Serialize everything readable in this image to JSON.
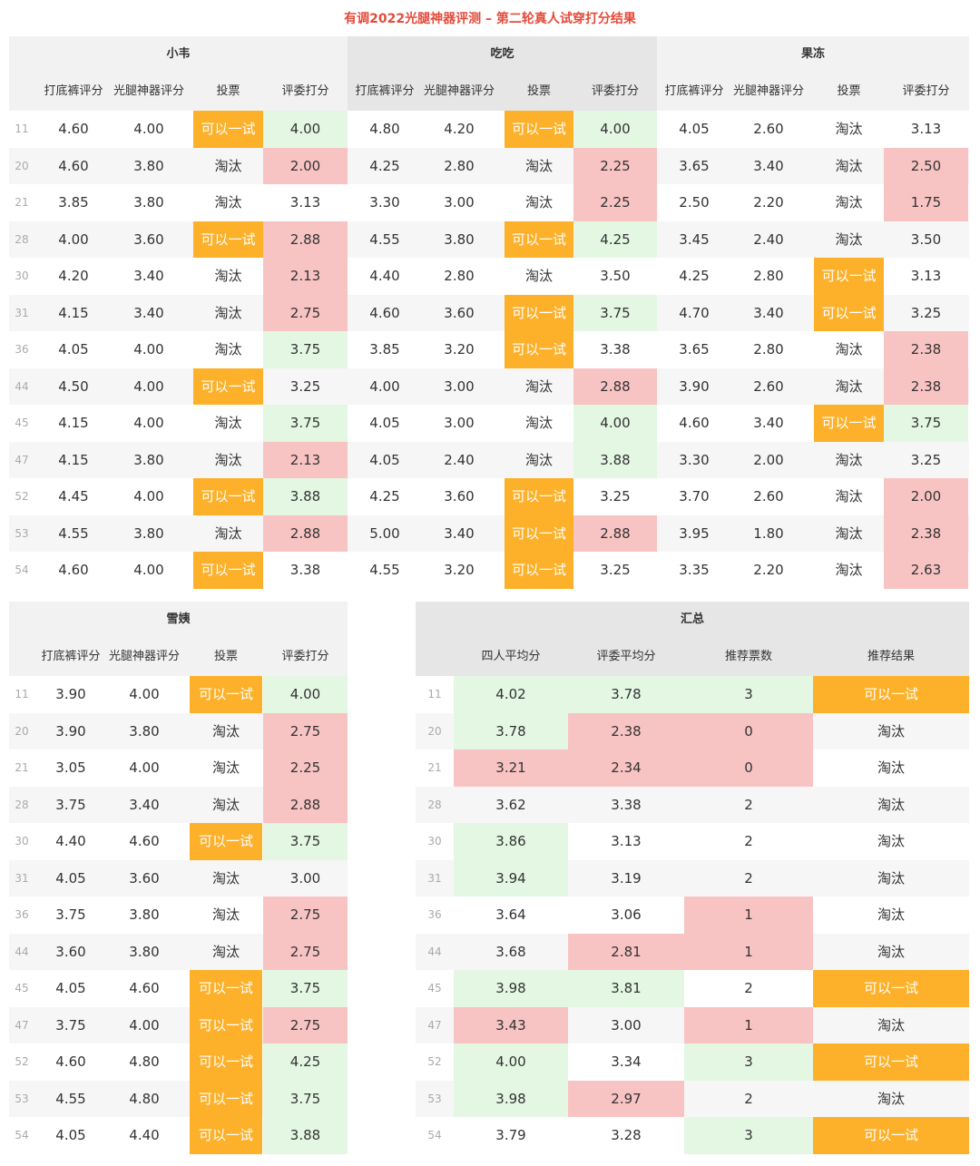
{
  "title": "有调2022光腿神器评测 – 第二轮真人试穿打分结果",
  "colors": {
    "orange": "#fdb12a",
    "green": "#e3f7e3",
    "red": "#f8c3c3",
    "title": "#e34b3c"
  },
  "columns": {
    "bottom": "打底裤评分",
    "leg": "光腿神器评分",
    "vote": "投票",
    "judge": "评委打分"
  },
  "summary_columns": {
    "avg4": "四人平均分",
    "judge_avg": "评委平均分",
    "votes": "推荐票数",
    "result": "推荐结果"
  },
  "top_groups": [
    {
      "name": "小韦",
      "rows": [
        {
          "id": "11",
          "bottom": "4.60",
          "leg": "4.00",
          "vote": "可以一试",
          "judge": "4.00",
          "vc": "orange",
          "jc": "green"
        },
        {
          "id": "20",
          "bottom": "4.60",
          "leg": "3.80",
          "vote": "淘汰",
          "judge": "2.00",
          "vc": "",
          "jc": "red"
        },
        {
          "id": "21",
          "bottom": "3.85",
          "leg": "3.80",
          "vote": "淘汰",
          "judge": "3.13",
          "vc": "",
          "jc": ""
        },
        {
          "id": "28",
          "bottom": "4.00",
          "leg": "3.60",
          "vote": "可以一试",
          "judge": "2.88",
          "vc": "orange",
          "jc": "red"
        },
        {
          "id": "30",
          "bottom": "4.20",
          "leg": "3.40",
          "vote": "淘汰",
          "judge": "2.13",
          "vc": "",
          "jc": "red"
        },
        {
          "id": "31",
          "bottom": "4.15",
          "leg": "3.40",
          "vote": "淘汰",
          "judge": "2.75",
          "vc": "",
          "jc": "red"
        },
        {
          "id": "36",
          "bottom": "4.05",
          "leg": "4.00",
          "vote": "淘汰",
          "judge": "3.75",
          "vc": "",
          "jc": "green"
        },
        {
          "id": "44",
          "bottom": "4.50",
          "leg": "4.00",
          "vote": "可以一试",
          "judge": "3.25",
          "vc": "orange",
          "jc": ""
        },
        {
          "id": "45",
          "bottom": "4.15",
          "leg": "4.00",
          "vote": "淘汰",
          "judge": "3.75",
          "vc": "",
          "jc": "green"
        },
        {
          "id": "47",
          "bottom": "4.15",
          "leg": "3.80",
          "vote": "淘汰",
          "judge": "2.13",
          "vc": "",
          "jc": "red"
        },
        {
          "id": "52",
          "bottom": "4.45",
          "leg": "4.00",
          "vote": "可以一试",
          "judge": "3.88",
          "vc": "orange",
          "jc": "green"
        },
        {
          "id": "53",
          "bottom": "4.55",
          "leg": "3.80",
          "vote": "淘汰",
          "judge": "2.88",
          "vc": "",
          "jc": "red"
        },
        {
          "id": "54",
          "bottom": "4.60",
          "leg": "4.00",
          "vote": "可以一试",
          "judge": "3.38",
          "vc": "orange",
          "jc": ""
        }
      ]
    },
    {
      "name": "吃吃",
      "rows": [
        {
          "bottom": "4.80",
          "leg": "4.20",
          "vote": "可以一试",
          "judge": "4.00",
          "vc": "orange",
          "jc": "green"
        },
        {
          "bottom": "4.25",
          "leg": "2.80",
          "vote": "淘汰",
          "judge": "2.25",
          "vc": "",
          "jc": "red"
        },
        {
          "bottom": "3.30",
          "leg": "3.00",
          "vote": "淘汰",
          "judge": "2.25",
          "vc": "",
          "jc": "red"
        },
        {
          "bottom": "4.55",
          "leg": "3.80",
          "vote": "可以一试",
          "judge": "4.25",
          "vc": "orange",
          "jc": "green"
        },
        {
          "bottom": "4.40",
          "leg": "2.80",
          "vote": "淘汰",
          "judge": "3.50",
          "vc": "",
          "jc": ""
        },
        {
          "bottom": "4.60",
          "leg": "3.60",
          "vote": "可以一试",
          "judge": "3.75",
          "vc": "orange",
          "jc": "green"
        },
        {
          "bottom": "3.85",
          "leg": "3.20",
          "vote": "可以一试",
          "judge": "3.38",
          "vc": "orange",
          "jc": ""
        },
        {
          "bottom": "4.00",
          "leg": "3.00",
          "vote": "淘汰",
          "judge": "2.88",
          "vc": "",
          "jc": "red"
        },
        {
          "bottom": "4.05",
          "leg": "3.00",
          "vote": "淘汰",
          "judge": "4.00",
          "vc": "",
          "jc": "green"
        },
        {
          "bottom": "4.05",
          "leg": "2.40",
          "vote": "淘汰",
          "judge": "3.88",
          "vc": "",
          "jc": "green"
        },
        {
          "bottom": "4.25",
          "leg": "3.60",
          "vote": "可以一试",
          "judge": "3.25",
          "vc": "orange",
          "jc": ""
        },
        {
          "bottom": "5.00",
          "leg": "3.40",
          "vote": "可以一试",
          "judge": "2.88",
          "vc": "orange",
          "jc": "red"
        },
        {
          "bottom": "4.55",
          "leg": "3.20",
          "vote": "可以一试",
          "judge": "3.25",
          "vc": "orange",
          "jc": ""
        }
      ]
    },
    {
      "name": "果冻",
      "rows": [
        {
          "bottom": "4.05",
          "leg": "2.60",
          "vote": "淘汰",
          "judge": "3.13",
          "vc": "",
          "jc": ""
        },
        {
          "bottom": "3.65",
          "leg": "3.40",
          "vote": "淘汰",
          "judge": "2.50",
          "vc": "",
          "jc": "red"
        },
        {
          "bottom": "2.50",
          "leg": "2.20",
          "vote": "淘汰",
          "judge": "1.75",
          "vc": "",
          "jc": "red"
        },
        {
          "bottom": "3.45",
          "leg": "2.40",
          "vote": "淘汰",
          "judge": "3.50",
          "vc": "",
          "jc": ""
        },
        {
          "bottom": "4.25",
          "leg": "2.80",
          "vote": "可以一试",
          "judge": "3.13",
          "vc": "orange",
          "jc": ""
        },
        {
          "bottom": "4.70",
          "leg": "3.40",
          "vote": "可以一试",
          "judge": "3.25",
          "vc": "orange",
          "jc": ""
        },
        {
          "bottom": "3.65",
          "leg": "2.80",
          "vote": "淘汰",
          "judge": "2.38",
          "vc": "",
          "jc": "red"
        },
        {
          "bottom": "3.90",
          "leg": "2.60",
          "vote": "淘汰",
          "judge": "2.38",
          "vc": "",
          "jc": "red"
        },
        {
          "bottom": "4.60",
          "leg": "3.40",
          "vote": "可以一试",
          "judge": "3.75",
          "vc": "orange",
          "jc": "green"
        },
        {
          "bottom": "3.30",
          "leg": "2.00",
          "vote": "淘汰",
          "judge": "3.25",
          "vc": "",
          "jc": ""
        },
        {
          "bottom": "3.70",
          "leg": "2.60",
          "vote": "淘汰",
          "judge": "2.00",
          "vc": "",
          "jc": "red"
        },
        {
          "bottom": "3.95",
          "leg": "1.80",
          "vote": "淘汰",
          "judge": "2.38",
          "vc": "",
          "jc": "red"
        },
        {
          "bottom": "3.35",
          "leg": "2.20",
          "vote": "淘汰",
          "judge": "2.63",
          "vc": "",
          "jc": "red"
        }
      ]
    }
  ],
  "xueyi": {
    "name": "雪姨",
    "rows": [
      {
        "id": "11",
        "bottom": "3.90",
        "leg": "4.00",
        "vote": "可以一试",
        "judge": "4.00",
        "vc": "orange",
        "jc": "green"
      },
      {
        "id": "20",
        "bottom": "3.90",
        "leg": "3.80",
        "vote": "淘汰",
        "judge": "2.75",
        "vc": "",
        "jc": "red"
      },
      {
        "id": "21",
        "bottom": "3.05",
        "leg": "4.00",
        "vote": "淘汰",
        "judge": "2.25",
        "vc": "",
        "jc": "red"
      },
      {
        "id": "28",
        "bottom": "3.75",
        "leg": "3.40",
        "vote": "淘汰",
        "judge": "2.88",
        "vc": "",
        "jc": "red"
      },
      {
        "id": "30",
        "bottom": "4.40",
        "leg": "4.60",
        "vote": "可以一试",
        "judge": "3.75",
        "vc": "orange",
        "jc": "green"
      },
      {
        "id": "31",
        "bottom": "4.05",
        "leg": "3.60",
        "vote": "淘汰",
        "judge": "3.00",
        "vc": "",
        "jc": ""
      },
      {
        "id": "36",
        "bottom": "3.75",
        "leg": "3.80",
        "vote": "淘汰",
        "judge": "2.75",
        "vc": "",
        "jc": "red"
      },
      {
        "id": "44",
        "bottom": "3.60",
        "leg": "3.80",
        "vote": "淘汰",
        "judge": "2.75",
        "vc": "",
        "jc": "red"
      },
      {
        "id": "45",
        "bottom": "4.05",
        "leg": "4.60",
        "vote": "可以一试",
        "judge": "3.75",
        "vc": "orange",
        "jc": "green"
      },
      {
        "id": "47",
        "bottom": "3.75",
        "leg": "4.00",
        "vote": "可以一试",
        "judge": "2.75",
        "vc": "orange",
        "jc": "red"
      },
      {
        "id": "52",
        "bottom": "4.60",
        "leg": "4.80",
        "vote": "可以一试",
        "judge": "4.25",
        "vc": "orange",
        "jc": "green"
      },
      {
        "id": "53",
        "bottom": "4.55",
        "leg": "4.80",
        "vote": "可以一试",
        "judge": "3.75",
        "vc": "orange",
        "jc": "green"
      },
      {
        "id": "54",
        "bottom": "4.05",
        "leg": "4.40",
        "vote": "可以一试",
        "judge": "3.88",
        "vc": "orange",
        "jc": "green"
      }
    ]
  },
  "summary": {
    "name": "汇总",
    "rows": [
      {
        "id": "11",
        "avg4": "4.02",
        "judge_avg": "3.78",
        "votes": "3",
        "result": "可以一试",
        "ac": "green",
        "jc": "green",
        "vc": "green",
        "rc": "orange"
      },
      {
        "id": "20",
        "avg4": "3.78",
        "judge_avg": "2.38",
        "votes": "0",
        "result": "淘汰",
        "ac": "green",
        "jc": "red",
        "vc": "red",
        "rc": ""
      },
      {
        "id": "21",
        "avg4": "3.21",
        "judge_avg": "2.34",
        "votes": "0",
        "result": "淘汰",
        "ac": "red",
        "jc": "red",
        "vc": "red",
        "rc": ""
      },
      {
        "id": "28",
        "avg4": "3.62",
        "judge_avg": "3.38",
        "votes": "2",
        "result": "淘汰",
        "ac": "",
        "jc": "",
        "vc": "",
        "rc": ""
      },
      {
        "id": "30",
        "avg4": "3.86",
        "judge_avg": "3.13",
        "votes": "2",
        "result": "淘汰",
        "ac": "green",
        "jc": "",
        "vc": "",
        "rc": ""
      },
      {
        "id": "31",
        "avg4": "3.94",
        "judge_avg": "3.19",
        "votes": "2",
        "result": "淘汰",
        "ac": "green",
        "jc": "",
        "vc": "",
        "rc": ""
      },
      {
        "id": "36",
        "avg4": "3.64",
        "judge_avg": "3.06",
        "votes": "1",
        "result": "淘汰",
        "ac": "",
        "jc": "",
        "vc": "red",
        "rc": ""
      },
      {
        "id": "44",
        "avg4": "3.68",
        "judge_avg": "2.81",
        "votes": "1",
        "result": "淘汰",
        "ac": "",
        "jc": "red",
        "vc": "red",
        "rc": ""
      },
      {
        "id": "45",
        "avg4": "3.98",
        "judge_avg": "3.81",
        "votes": "2",
        "result": "可以一试",
        "ac": "green",
        "jc": "green",
        "vc": "",
        "rc": "orange"
      },
      {
        "id": "47",
        "avg4": "3.43",
        "judge_avg": "3.00",
        "votes": "1",
        "result": "淘汰",
        "ac": "red",
        "jc": "",
        "vc": "red",
        "rc": ""
      },
      {
        "id": "52",
        "avg4": "4.00",
        "judge_avg": "3.34",
        "votes": "3",
        "result": "可以一试",
        "ac": "green",
        "jc": "",
        "vc": "green",
        "rc": "orange"
      },
      {
        "id": "53",
        "avg4": "3.98",
        "judge_avg": "2.97",
        "votes": "2",
        "result": "淘汰",
        "ac": "green",
        "jc": "red",
        "vc": "",
        "rc": ""
      },
      {
        "id": "54",
        "avg4": "3.79",
        "judge_avg": "3.28",
        "votes": "3",
        "result": "可以一试",
        "ac": "",
        "jc": "",
        "vc": "green",
        "rc": "orange"
      }
    ]
  }
}
